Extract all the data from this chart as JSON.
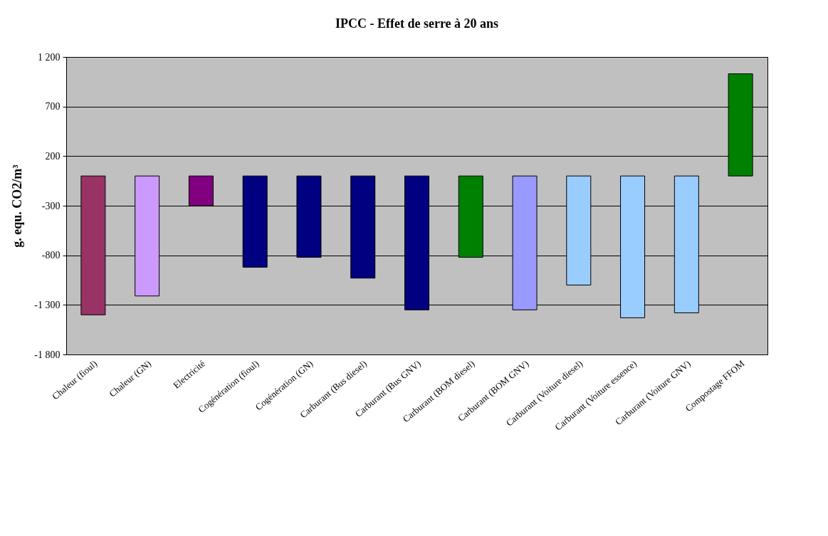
{
  "chart_data": {
    "type": "bar",
    "title": "IPCC - Effet de serre à 20 ans",
    "ylabel": "g. equ. CO2/m³",
    "categories": [
      "Chaleur  (fioul)",
      "Chaleur  (GN)",
      "Electricité",
      "Cogénération (fioul)",
      "Cogénération (GN)",
      "Carburant  (Bus diesel)",
      "Carburant  (Bus GNV)",
      "Carburant  (BOM diesel)",
      "Carburant  (BOM GNV)",
      "Carburant  (Voiture diesel)",
      "Carburant  (Voiture essence)",
      "Carburant  (Voiture GNV)",
      "Compostage FFOM"
    ],
    "values": [
      -1400,
      -1210,
      -300,
      -920,
      -820,
      -1030,
      -1350,
      -820,
      -1350,
      -1100,
      -1430,
      -1380,
      1030
    ],
    "colors": [
      "#993366",
      "#cc99ff",
      "#800080",
      "#000080",
      "#000080",
      "#000080",
      "#000080",
      "#008000",
      "#9999ff",
      "#99ccff",
      "#99ccff",
      "#99ccff",
      "#008000"
    ],
    "ylim": [
      -1800,
      1200
    ],
    "yticks": [
      {
        "value": 1200,
        "label": "1 200"
      },
      700,
      200,
      -300,
      -800,
      {
        "value": -1300,
        "label": "-1 300"
      },
      {
        "value": -1800,
        "label": "-1 800"
      }
    ],
    "grid": "y"
  }
}
